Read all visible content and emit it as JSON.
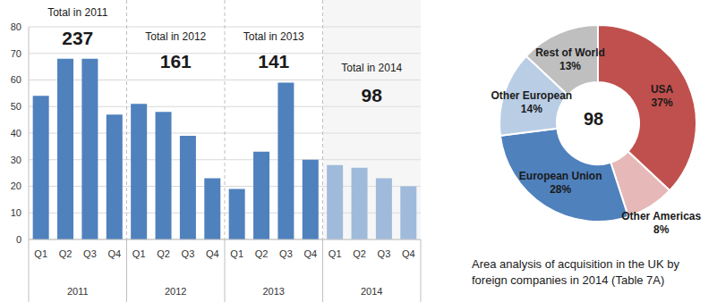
{
  "chart_data": [
    {
      "type": "bar",
      "categories": [
        "Q1",
        "Q2",
        "Q3",
        "Q4",
        "Q1",
        "Q2",
        "Q3",
        "Q4",
        "Q1",
        "Q2",
        "Q3",
        "Q4",
        "Q1",
        "Q2",
        "Q3",
        "Q4"
      ],
      "groups": [
        "2011",
        "2012",
        "2013",
        "2014"
      ],
      "values": [
        54,
        68,
        68,
        47,
        51,
        48,
        39,
        23,
        19,
        33,
        59,
        30,
        28,
        27,
        23,
        20
      ],
      "colors": [
        "#4f81bd",
        "#4f81bd",
        "#4f81bd",
        "#4f81bd",
        "#4f81bd",
        "#4f81bd",
        "#4f81bd",
        "#4f81bd",
        "#4f81bd",
        "#4f81bd",
        "#4f81bd",
        "#4f81bd",
        "#7ba3d6",
        "#7ba3d6",
        "#7ba3d6",
        "#7ba3d6"
      ],
      "annotations": [
        {
          "text": "Total in 2011",
          "value": 237
        },
        {
          "text": "Total in 2012",
          "value": 161
        },
        {
          "text": "Total in 2013",
          "value": 141
        },
        {
          "text": "Total in 2014",
          "value": 98
        }
      ],
      "ylim": [
        0,
        80
      ],
      "yticks": [
        0,
        10,
        20,
        30,
        40,
        50,
        60,
        70,
        80
      ],
      "grid": true
    },
    {
      "type": "pie",
      "title": "Area analysis of acquisition in the UK by foreign companies in 2014 (Table 7A)",
      "categories": [
        "USA",
        "Other Americas",
        "European Union",
        "Other European",
        "Rest of World"
      ],
      "values": [
        37,
        8,
        28,
        14,
        13
      ],
      "value_labels": [
        "37%",
        "8%",
        "28%",
        "14%",
        "13%"
      ],
      "colors": [
        "#c0504d",
        "#e6b9b8",
        "#4f81bd",
        "#b9cde5",
        "#bfbfbf"
      ],
      "annotations": [
        "98"
      ]
    }
  ]
}
